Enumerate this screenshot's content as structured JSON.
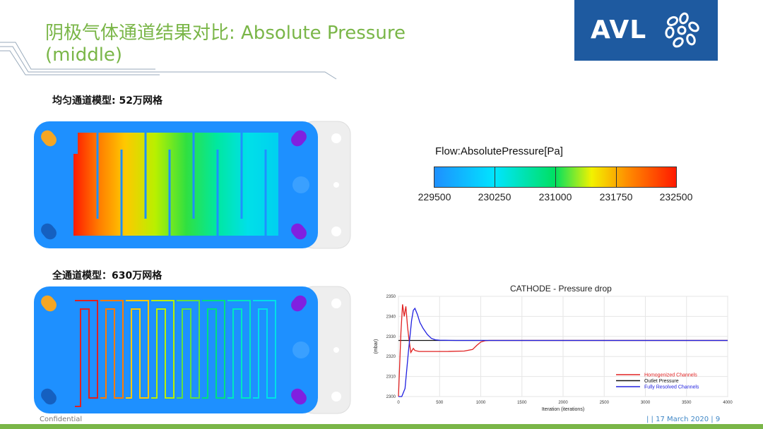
{
  "slide": {
    "title": "阴极气体通道结果对比: Absolute Pressure (middle)",
    "logo": "AVL",
    "subtitle_homogenized": "均匀通道模型: 52万网格",
    "subtitle_full": "全通道模型：630万网格",
    "footer_left": "Confidential",
    "footer_right": "| | 17 March 2020 |  9"
  },
  "legend": {
    "title": "Flow:AbsolutePressure[Pa]",
    "ticks": [
      "229500",
      "230250",
      "231000",
      "231750",
      "232500"
    ]
  },
  "colors": {
    "title_green": "#7ab648",
    "logo_blue": "#1e5aa0",
    "plate_blue": "#1e90ff",
    "homogenized_red": "#e02020",
    "outlet_black": "#111111",
    "resolved_blue": "#2020e0"
  },
  "chart_data": {
    "type": "line",
    "title": "CATHODE - Pressure drop",
    "xlabel": "Iteration (iterations)",
    "ylabel": "(mbar)",
    "xlim": [
      0,
      4000
    ],
    "ylim": [
      2300,
      2350
    ],
    "xticks": [
      "0",
      "500",
      "1000",
      "1500",
      "2000",
      "2500",
      "3000",
      "3500",
      "4000"
    ],
    "yticks": [
      "2300",
      "2310",
      "2320",
      "2330",
      "2340",
      "2350"
    ],
    "grid": true,
    "legend_position": "bottom-right",
    "series": [
      {
        "name": "Homogenized Channels",
        "color": "#e02020",
        "x": [
          0,
          30,
          50,
          70,
          90,
          110,
          130,
          150,
          180,
          200,
          250,
          300,
          400,
          600,
          800,
          900,
          950,
          1000,
          1050,
          1100,
          1500,
          2000,
          3000,
          4000
        ],
        "y": [
          2300,
          2332,
          2346,
          2340,
          2345,
          2335,
          2328,
          2322,
          2324,
          2323,
          2322.5,
          2322.5,
          2322.5,
          2322.5,
          2322.7,
          2323.5,
          2325.5,
          2327.2,
          2327.8,
          2328,
          2328,
          2328,
          2328,
          2328
        ]
      },
      {
        "name": "Outlet Pressure",
        "color": "#111111",
        "x": [
          0,
          4000
        ],
        "y": [
          2328,
          2328
        ]
      },
      {
        "name": "Fully Resolved Channels",
        "color": "#2020e0",
        "x": [
          0,
          40,
          80,
          120,
          160,
          180,
          200,
          230,
          260,
          300,
          350,
          400,
          450,
          500,
          700,
          1000,
          2000,
          3000,
          4000
        ],
        "y": [
          2300,
          2300,
          2304,
          2322,
          2338,
          2343,
          2344,
          2341,
          2337,
          2334,
          2331,
          2329,
          2328.3,
          2328.1,
          2328,
          2328,
          2328,
          2328,
          2328
        ]
      }
    ]
  }
}
